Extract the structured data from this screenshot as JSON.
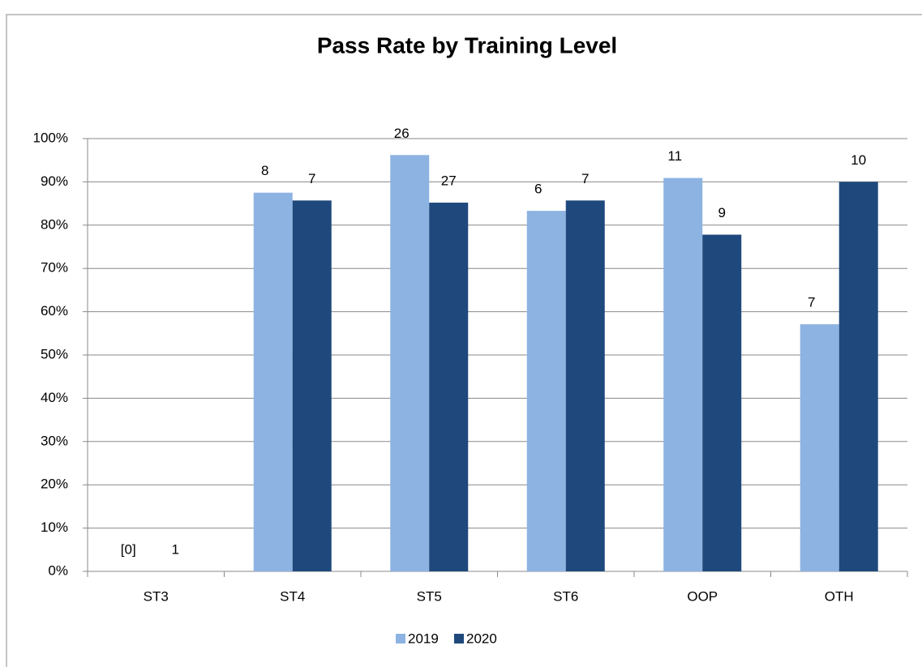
{
  "chart_data": {
    "type": "bar",
    "title": "Pass Rate by Training Level",
    "categories": [
      "ST3",
      "ST4",
      "ST5",
      "ST6",
      "OOP",
      "OTH"
    ],
    "series": [
      {
        "name": "2019",
        "color": "#8db3e2",
        "values": [
          0,
          87.5,
          96.2,
          83.3,
          90.9,
          57.1
        ],
        "labels": [
          "[0]",
          "8",
          "26",
          "6",
          "11",
          "7"
        ]
      },
      {
        "name": "2020",
        "color": "#1f497d",
        "values": [
          0,
          85.7,
          85.2,
          85.7,
          77.8,
          90
        ],
        "labels": [
          "1",
          "7",
          "27",
          "7",
          "9",
          "10"
        ]
      }
    ],
    "ylim": [
      0,
      100
    ],
    "yticks": [
      {
        "value": 0,
        "label": "0%"
      },
      {
        "value": 10,
        "label": "10%"
      },
      {
        "value": 20,
        "label": "20%"
      },
      {
        "value": 30,
        "label": "30%"
      },
      {
        "value": 40,
        "label": "40%"
      },
      {
        "value": 50,
        "label": "50%"
      },
      {
        "value": 60,
        "label": "60%"
      },
      {
        "value": 70,
        "label": "70%"
      },
      {
        "value": 80,
        "label": "80%"
      },
      {
        "value": 90,
        "label": "90%"
      },
      {
        "value": 100,
        "label": "100%"
      }
    ],
    "grid": true,
    "legend": "bottom"
  }
}
